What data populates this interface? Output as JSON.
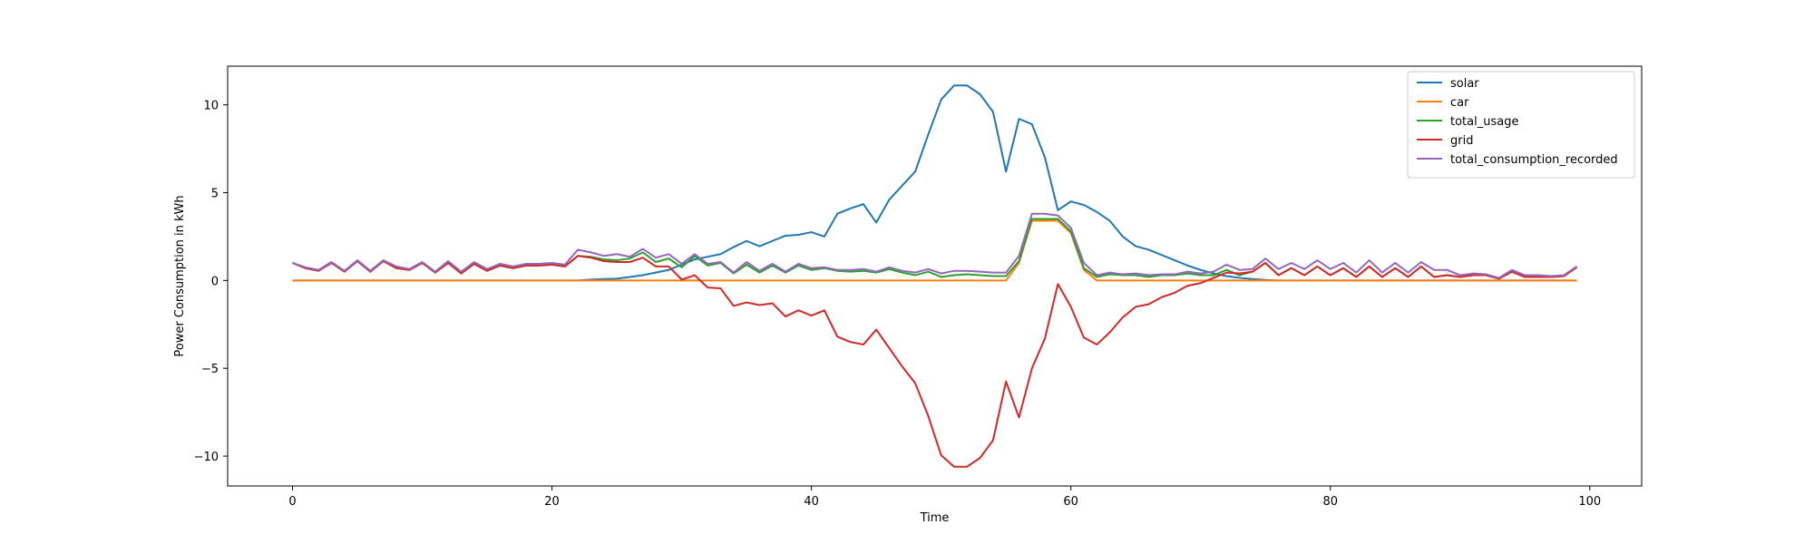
{
  "chart_data": {
    "type": "line",
    "title": "",
    "xlabel": "Time",
    "ylabel": "Power Consumption in kWh",
    "xlim": [
      -5,
      104
    ],
    "ylim": [
      -11.7,
      12.2
    ],
    "xticks": [
      0,
      20,
      40,
      60,
      80,
      100
    ],
    "yticks": [
      -10,
      -5,
      0,
      5,
      10
    ],
    "grid": false,
    "legend": "top-right",
    "series": [
      {
        "name": "solar",
        "color": "#1f77b4",
        "values": [
          0,
          0,
          0,
          0,
          0,
          0,
          0,
          0,
          0,
          0,
          0,
          0,
          0,
          0,
          0,
          0,
          0,
          0,
          0,
          0,
          0,
          0,
          0,
          0.05,
          0.08,
          0.1,
          0.2,
          0.3,
          0.45,
          0.6,
          0.9,
          1.2,
          1.35,
          1.5,
          1.9,
          2.25,
          1.95,
          2.25,
          2.55,
          2.6,
          2.75,
          2.5,
          3.8,
          4.1,
          4.35,
          3.3,
          4.6,
          5.4,
          6.2,
          8.3,
          10.3,
          11.1,
          11.1,
          10.6,
          9.6,
          6.2,
          9.2,
          8.9,
          7.0,
          4.0,
          4.5,
          4.3,
          3.9,
          3.4,
          2.5,
          1.95,
          1.75,
          1.45,
          1.15,
          0.85,
          0.6,
          0.4,
          0.25,
          0.15,
          0.08,
          0.03,
          0,
          0,
          0,
          0,
          0,
          0,
          0,
          0,
          0,
          0,
          0,
          0,
          0,
          0,
          0,
          0,
          0,
          0,
          0,
          0,
          0,
          0,
          0,
          0
        ]
      },
      {
        "name": "car",
        "color": "#ff7f0e",
        "values": [
          0,
          0,
          0,
          0,
          0,
          0,
          0,
          0,
          0,
          0,
          0,
          0,
          0,
          0,
          0,
          0,
          0,
          0,
          0,
          0,
          0,
          0,
          0,
          0,
          0,
          0,
          0,
          0,
          0,
          0,
          0,
          0,
          0,
          0,
          0,
          0,
          0,
          0,
          0,
          0,
          0,
          0,
          0,
          0,
          0,
          0,
          0,
          0,
          0,
          0,
          0,
          0,
          0,
          0,
          0,
          0,
          1.0,
          3.4,
          3.4,
          3.4,
          2.7,
          0.6,
          0,
          0,
          0,
          0,
          0,
          0,
          0,
          0,
          0,
          0,
          0,
          0,
          0,
          0,
          0,
          0,
          0,
          0,
          0,
          0,
          0,
          0,
          0,
          0,
          0,
          0,
          0,
          0,
          0,
          0,
          0,
          0,
          0,
          0,
          0,
          0,
          0,
          0
        ]
      },
      {
        "name": "total_usage",
        "color": "#2ca02c",
        "values": [
          1.0,
          0.7,
          0.55,
          1.0,
          0.5,
          1.1,
          0.5,
          1.1,
          0.7,
          0.6,
          1.0,
          0.45,
          1.0,
          0.4,
          0.95,
          0.55,
          0.85,
          0.7,
          0.85,
          0.85,
          0.9,
          0.8,
          1.4,
          1.35,
          1.2,
          1.15,
          1.25,
          1.6,
          1.05,
          1.25,
          0.75,
          1.4,
          0.85,
          1.0,
          0.4,
          0.9,
          0.45,
          0.85,
          0.45,
          0.85,
          0.6,
          0.7,
          0.55,
          0.5,
          0.55,
          0.45,
          0.65,
          0.45,
          0.3,
          0.5,
          0.2,
          0.3,
          0.35,
          0.3,
          0.25,
          0.25,
          1.1,
          3.5,
          3.5,
          3.5,
          2.8,
          0.7,
          0.2,
          0.35,
          0.3,
          0.3,
          0.2,
          0.3,
          0.3,
          0.4,
          0.3,
          0.3,
          0.6,
          0.3,
          0.5,
          1.0,
          0.3,
          0.7,
          0.3,
          0.8,
          0.3,
          0.7,
          0.2,
          0.8,
          0.2,
          0.7,
          0.2,
          0.8,
          0.2,
          0.3,
          0.2,
          0.3,
          0.3,
          0.1,
          0.5,
          0.2,
          0.2,
          0.2,
          0.25,
          0.75
        ]
      },
      {
        "name": "grid",
        "color": "#d62728",
        "values": [
          1.0,
          0.7,
          0.55,
          1.0,
          0.5,
          1.1,
          0.5,
          1.1,
          0.7,
          0.6,
          1.0,
          0.45,
          1.0,
          0.4,
          0.95,
          0.55,
          0.85,
          0.7,
          0.85,
          0.85,
          0.9,
          0.8,
          1.4,
          1.3,
          1.1,
          1.05,
          1.05,
          1.3,
          0.8,
          0.8,
          0.05,
          0.3,
          -0.4,
          -0.45,
          -1.45,
          -1.25,
          -1.4,
          -1.3,
          -2.05,
          -1.7,
          -2.0,
          -1.7,
          -3.2,
          -3.5,
          -3.65,
          -2.8,
          -3.85,
          -4.9,
          -5.85,
          -7.7,
          -9.95,
          -10.6,
          -10.6,
          -10.1,
          -9.1,
          -5.75,
          -7.8,
          -5.0,
          -3.3,
          -0.2,
          -1.5,
          -3.25,
          -3.65,
          -2.95,
          -2.1,
          -1.5,
          -1.35,
          -0.95,
          -0.7,
          -0.3,
          -0.15,
          0.15,
          0.45,
          0.4,
          0.5,
          1.0,
          0.3,
          0.7,
          0.3,
          0.8,
          0.3,
          0.7,
          0.2,
          0.8,
          0.2,
          0.7,
          0.2,
          0.8,
          0.2,
          0.3,
          0.2,
          0.3,
          0.3,
          0.1,
          0.5,
          0.2,
          0.2,
          0.2,
          0.25,
          0.75
        ]
      },
      {
        "name": "total_consumption_recorded",
        "color": "#9467bd",
        "values": [
          1.0,
          0.75,
          0.6,
          1.05,
          0.55,
          1.15,
          0.55,
          1.15,
          0.8,
          0.65,
          1.05,
          0.5,
          1.1,
          0.5,
          1.05,
          0.65,
          0.95,
          0.8,
          0.95,
          0.95,
          1.0,
          0.9,
          1.75,
          1.6,
          1.4,
          1.5,
          1.35,
          1.8,
          1.3,
          1.5,
          0.95,
          1.5,
          0.95,
          1.05,
          0.45,
          1.05,
          0.55,
          0.95,
          0.5,
          0.95,
          0.7,
          0.75,
          0.6,
          0.6,
          0.65,
          0.5,
          0.75,
          0.55,
          0.45,
          0.65,
          0.4,
          0.55,
          0.55,
          0.5,
          0.45,
          0.45,
          1.4,
          3.8,
          3.8,
          3.7,
          3.0,
          1.0,
          0.3,
          0.45,
          0.35,
          0.4,
          0.3,
          0.35,
          0.35,
          0.5,
          0.4,
          0.5,
          0.9,
          0.6,
          0.65,
          1.25,
          0.65,
          1.0,
          0.65,
          1.15,
          0.65,
          1.0,
          0.45,
          1.15,
          0.45,
          1.0,
          0.45,
          1.05,
          0.6,
          0.6,
          0.3,
          0.4,
          0.35,
          0.15,
          0.6,
          0.3,
          0.3,
          0.25,
          0.3,
          0.8
        ]
      }
    ]
  }
}
